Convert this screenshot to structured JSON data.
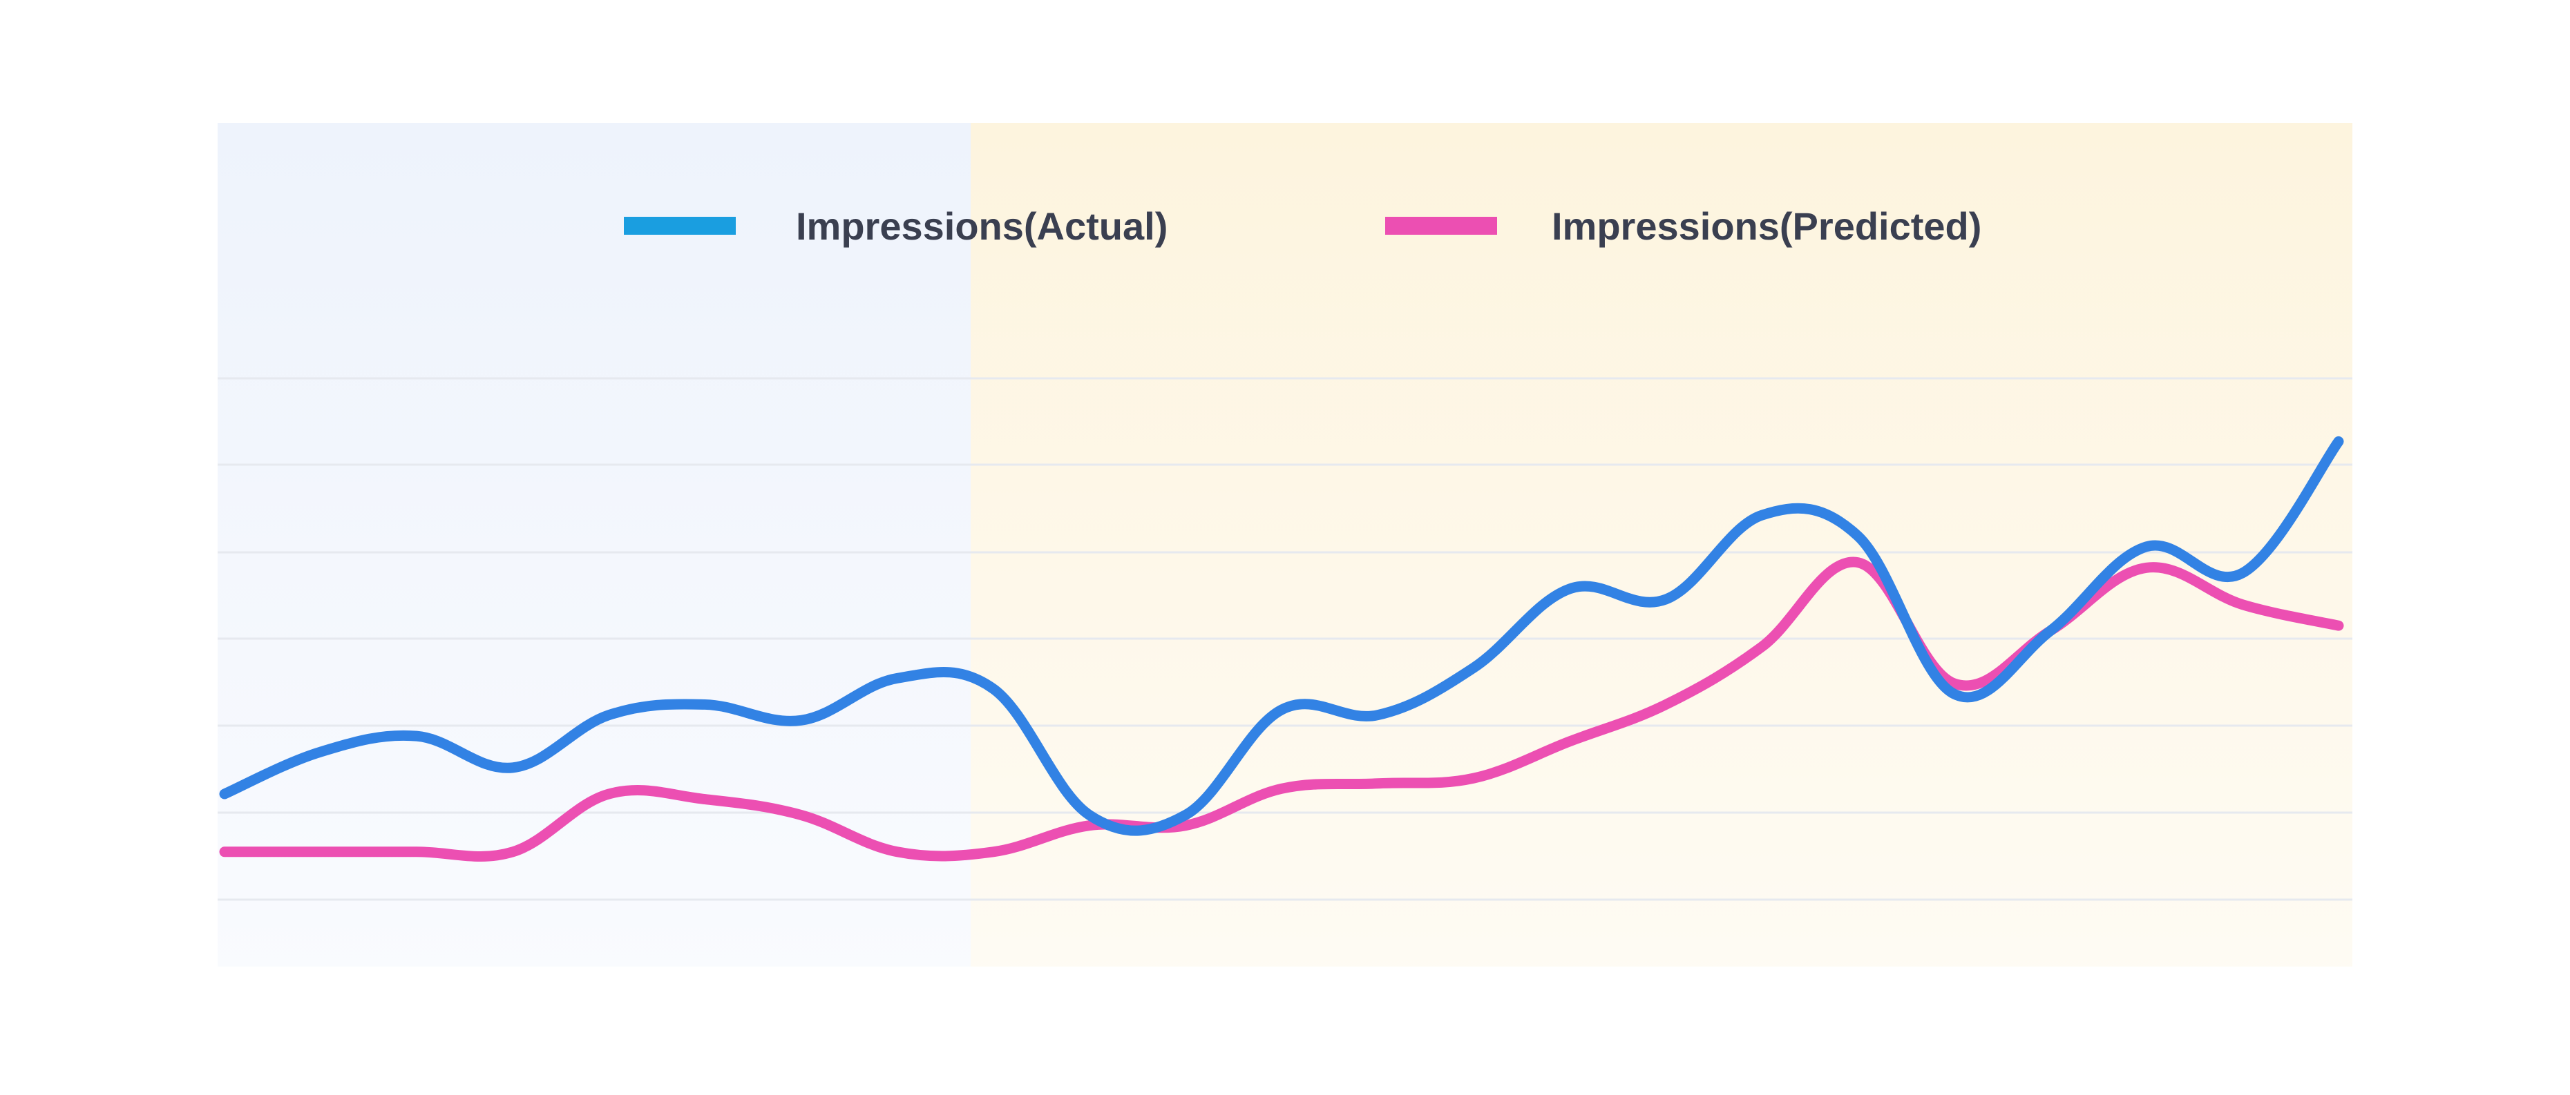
{
  "chart_data": {
    "type": "line",
    "title": "",
    "xlabel": "",
    "ylabel": "",
    "ylim": [
      0,
      100
    ],
    "grid": true,
    "legend_position": "top-center",
    "x": [
      0,
      1,
      2,
      3,
      4,
      5,
      6,
      7,
      8,
      9,
      10,
      11,
      12,
      13,
      14,
      15,
      16,
      17,
      18,
      19,
      20,
      21,
      22
    ],
    "series": [
      {
        "name": "Impressions(Actual)",
        "color": "#3282e4",
        "legend_color": "#1a9ee0",
        "values": [
          21,
          29,
          32,
          26,
          36,
          38,
          35,
          43,
          41,
          17,
          17,
          37,
          36,
          45,
          60,
          58,
          74,
          70,
          40,
          52,
          68,
          63,
          88
        ]
      },
      {
        "name": "Impressions(Predicted)",
        "color": "#ec4fb2",
        "legend_color": "#ec4fb2",
        "values": [
          10,
          10,
          10,
          10,
          21,
          20,
          17,
          10,
          10,
          15,
          15,
          22,
          23,
          24,
          31,
          38,
          49,
          65,
          42,
          52,
          64,
          57,
          53
        ]
      }
    ],
    "highlight_regions": [
      {
        "x_start": 0,
        "x_end": 8,
        "color": "#eef3fc"
      },
      {
        "x_start": 8,
        "x_end": 22,
        "color": "#fdf4de"
      }
    ]
  }
}
